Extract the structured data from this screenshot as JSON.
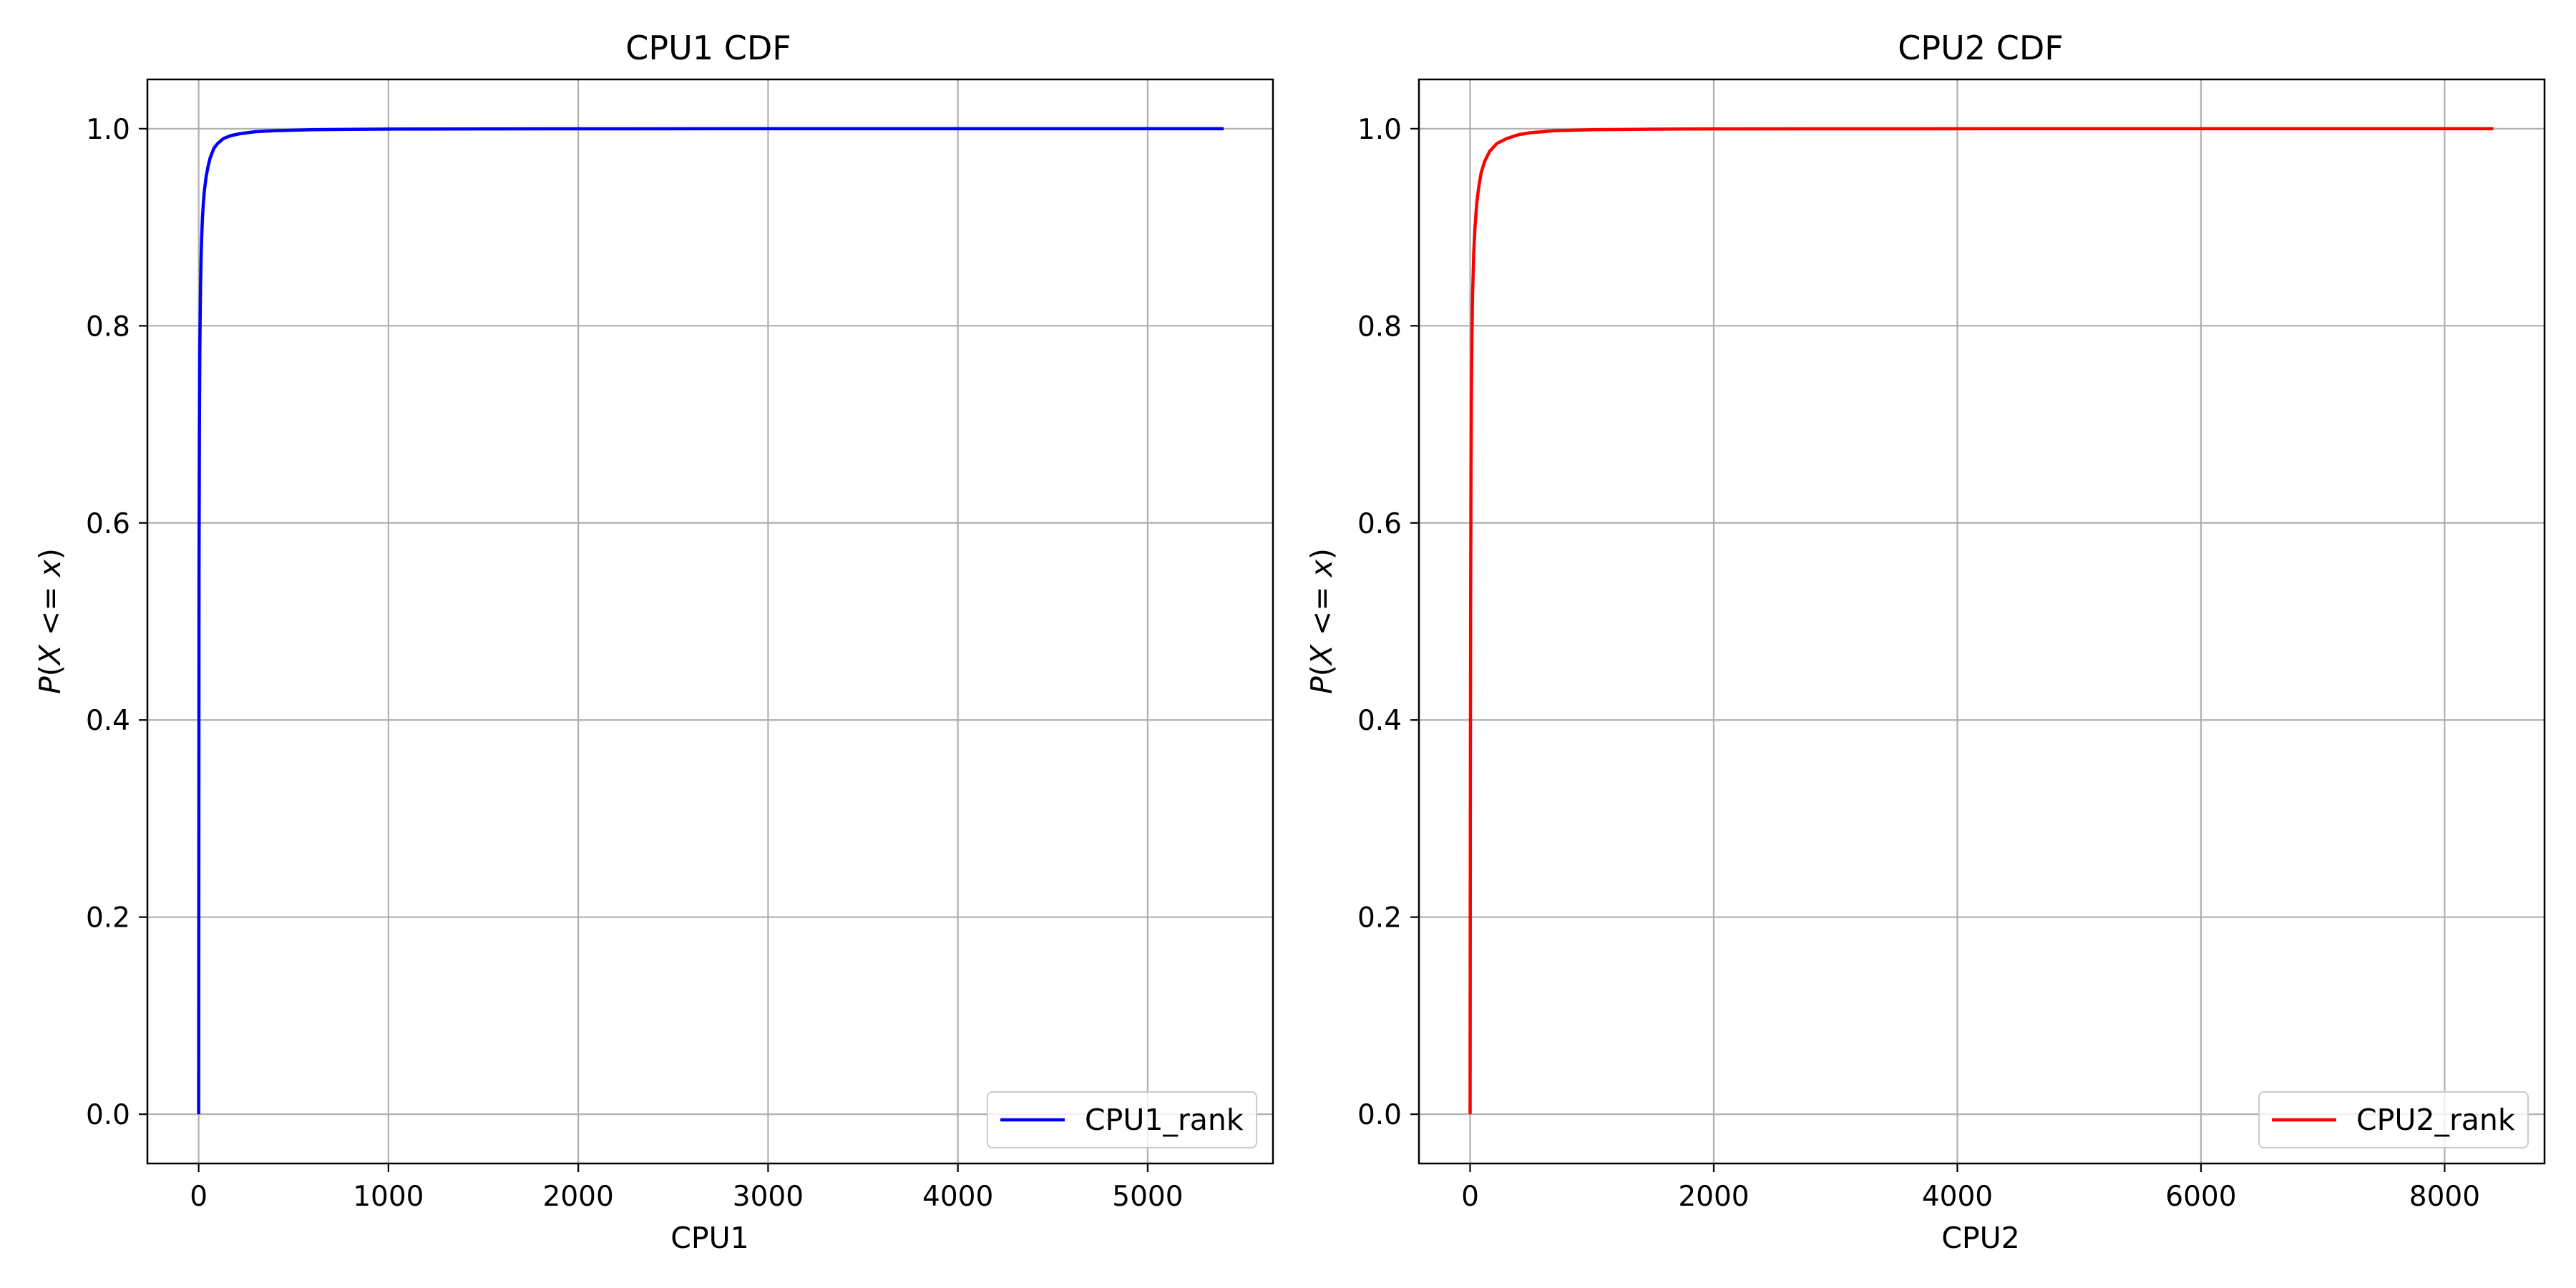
{
  "chart_data": [
    {
      "type": "line",
      "title": "CPU1 CDF",
      "xlabel": "CPU1",
      "ylabel": "P(X <= x)",
      "xlim": [
        -270,
        5660
      ],
      "ylim": [
        -0.05,
        1.05
      ],
      "xticks": [
        0,
        1000,
        2000,
        3000,
        4000,
        5000
      ],
      "yticks": [
        0.0,
        0.2,
        0.4,
        0.6,
        0.8,
        1.0
      ],
      "grid": true,
      "legend_position": "lower-right",
      "series": [
        {
          "name": "CPU1_rank",
          "color": "#0000ff",
          "x": [
            0,
            1,
            2,
            4,
            6,
            8,
            10,
            13,
            16,
            20,
            25,
            30,
            40,
            50,
            60,
            80,
            100,
            130,
            170,
            220,
            300,
            400,
            600,
            800,
            1000,
            1500,
            2000,
            3000,
            4000,
            5000,
            5400
          ],
          "y": [
            0.0,
            0.3,
            0.55,
            0.7,
            0.77,
            0.81,
            0.84,
            0.87,
            0.89,
            0.91,
            0.925,
            0.937,
            0.952,
            0.962,
            0.97,
            0.98,
            0.985,
            0.99,
            0.993,
            0.995,
            0.997,
            0.998,
            0.999,
            0.9994,
            0.9996,
            0.9998,
            0.9999,
            1.0,
            1.0,
            1.0,
            1.0
          ]
        }
      ]
    },
    {
      "type": "line",
      "title": "CPU2 CDF",
      "xlabel": "CPU2",
      "ylabel": "P(X <= x)",
      "xlim": [
        -420,
        8820
      ],
      "ylim": [
        -0.05,
        1.05
      ],
      "xticks": [
        0,
        2000,
        4000,
        6000,
        8000
      ],
      "yticks": [
        0.0,
        0.2,
        0.4,
        0.6,
        0.8,
        1.0
      ],
      "grid": true,
      "legend_position": "lower-right",
      "series": [
        {
          "name": "CPU2_rank",
          "color": "#ff0000",
          "x": [
            0,
            2,
            4,
            7,
            10,
            15,
            20,
            30,
            40,
            55,
            70,
            90,
            120,
            160,
            220,
            300,
            400,
            500,
            700,
            1000,
            1500,
            2000,
            3000,
            5000,
            7000,
            8400
          ],
          "y": [
            0.0,
            0.3,
            0.5,
            0.64,
            0.72,
            0.79,
            0.83,
            0.875,
            0.9,
            0.925,
            0.94,
            0.955,
            0.967,
            0.977,
            0.985,
            0.99,
            0.994,
            0.996,
            0.998,
            0.999,
            0.9995,
            0.9998,
            0.9999,
            1.0,
            1.0,
            1.0
          ]
        }
      ]
    }
  ]
}
